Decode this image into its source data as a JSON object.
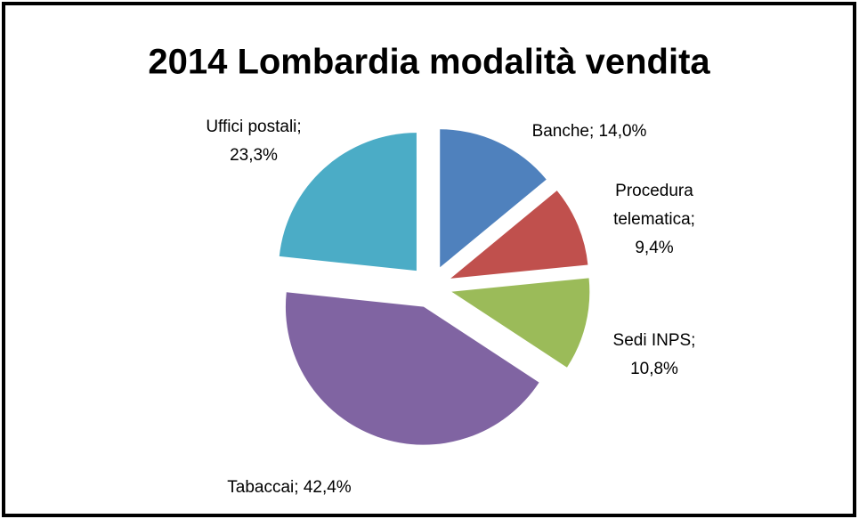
{
  "chart_data": {
    "type": "pie",
    "title": "2014 Lombardia modalità vendita",
    "values": [
      14.0,
      9.4,
      10.8,
      42.4,
      23.3
    ],
    "value_labels": [
      [
        "Banche; 14,0%"
      ],
      [
        "Procedura",
        "telematica;",
        "9,4%"
      ],
      [
        "Sedi INPS;",
        "10,8%"
      ],
      [
        "Tabaccai; 42,4%"
      ],
      [
        "Uffici postali;",
        "23,3%"
      ]
    ],
    "colors": [
      "#4f81bd",
      "#c0504d",
      "#9bbb59",
      "#8064a2",
      "#4bacc6"
    ]
  }
}
